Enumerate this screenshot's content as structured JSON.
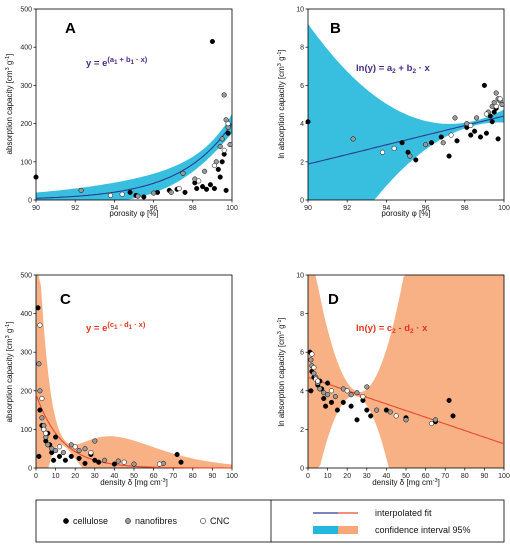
{
  "colors": {
    "exp_fit_line": "#2b3a8f",
    "exp_band": "#22b8dd",
    "dens_fit_line": "#e8492e",
    "dens_band": "#f7a878",
    "eq_top": "#4b2a8a",
    "eq_bottom": "#e8331f",
    "cellulose": "#000000",
    "nanofibres_fill": "#9a9a9a",
    "cnc_fill": "#ffffff"
  },
  "chart_data": [
    {
      "id": "A",
      "panel_label": "A",
      "type": "scatter",
      "equation": "y = e^(a1 + b1 · x)",
      "equation_parts": {
        "lhs": "y = e",
        "sup": "(a",
        "s1": "1",
        "mid": " + b",
        "s2": "1",
        "tail": " · x)"
      },
      "equation_color_key": "eq_top",
      "xlabel": "porosity φ [%]",
      "ylabel": "absorption capacity [cm3 g-1]",
      "ylabel_parts": {
        "a": "absorption capacity [cm",
        "s1": "3",
        "b": " g",
        "s2": "-1",
        "c": "]"
      },
      "xlim": [
        90,
        100
      ],
      "ylim": [
        0,
        500
      ],
      "xticks": [
        90,
        92,
        94,
        96,
        98,
        100
      ],
      "yticks": [
        0,
        100,
        200,
        300,
        400,
        500
      ],
      "fit": {
        "kind": "exp",
        "a": -32.7,
        "b": 0.38
      },
      "band": {
        "kind": "exp_band",
        "x0": 99.6,
        "widen": 0.035
      },
      "band_color_key": "exp_band",
      "line_color_key": "exp_fit_line",
      "series": [
        {
          "name": "cellulose",
          "marker": "filled",
          "points": [
            [
              90,
              60
            ],
            [
              94.8,
              20
            ],
            [
              95.1,
              12
            ],
            [
              95.5,
              8
            ],
            [
              96.2,
              20
            ],
            [
              96.8,
              25
            ],
            [
              97.2,
              28
            ],
            [
              97.6,
              20
            ],
            [
              98.1,
              45
            ],
            [
              98.2,
              30
            ],
            [
              98.5,
              35
            ],
            [
              98.7,
              28
            ],
            [
              98.9,
              40
            ],
            [
              99,
              415
            ],
            [
              99.1,
              30
            ],
            [
              99.3,
              80
            ],
            [
              99.4,
              60
            ],
            [
              99.5,
              100
            ],
            [
              99.6,
              120
            ],
            [
              99.7,
              25
            ],
            [
              99.8,
              175
            ]
          ]
        },
        {
          "name": "nanofibres",
          "marker": "grey",
          "points": [
            [
              92.3,
              25
            ],
            [
              95.2,
              10
            ],
            [
              96,
              18
            ],
            [
              96.9,
              20
            ],
            [
              97.5,
              70
            ],
            [
              98.1,
              55
            ],
            [
              98.6,
              75
            ],
            [
              99.2,
              100
            ],
            [
              99.4,
              140
            ],
            [
              99.5,
              160
            ],
            [
              99.6,
              275
            ],
            [
              99.7,
              210
            ],
            [
              99.8,
              190
            ],
            [
              99.9,
              145
            ]
          ]
        },
        {
          "name": "CNC",
          "marker": "open",
          "points": [
            [
              93.8,
              12
            ],
            [
              94.4,
              15
            ],
            [
              97.3,
              30
            ],
            [
              98.3,
              50
            ],
            [
              99.1,
              90
            ],
            [
              99.6,
              130
            ],
            [
              99.8,
              200
            ]
          ]
        }
      ]
    },
    {
      "id": "B",
      "panel_label": "B",
      "type": "scatter",
      "equation": "ln(y) = a2 + b2 · x",
      "equation_parts": {
        "lhs": "ln(y) = a",
        "s1": "2",
        "mid": " + b",
        "s2": "2",
        "tail": " · x"
      },
      "equation_color_key": "eq_top",
      "xlabel": "porosity φ [%]",
      "ylabel": "ln absorption capacity [cm3 g-1]",
      "ylabel_parts": {
        "a": "ln absorption capacity [cm",
        "s1": "3",
        "b": " g",
        "s2": "-1",
        "c": "]"
      },
      "xlim": [
        90,
        100
      ],
      "ylim": [
        0,
        10
      ],
      "xticks": [
        90,
        92,
        94,
        96,
        98,
        100
      ],
      "yticks": [
        0,
        2,
        4,
        6,
        8,
        10
      ],
      "fit": {
        "kind": "line",
        "a": -20.8,
        "b": 0.252
      },
      "band": {
        "kind": "lin_band",
        "x0": 98.5,
        "base": 0.12,
        "widen": 0.1
      },
      "band_color_key": "exp_band",
      "line_color_key": "exp_fit_line",
      "series": [
        {
          "name": "cellulose",
          "marker": "filled",
          "points": [
            [
              90,
              4.1
            ],
            [
              94.8,
              3
            ],
            [
              95.1,
              2.5
            ],
            [
              95.5,
              2.1
            ],
            [
              96.3,
              3
            ],
            [
              96.8,
              3.3
            ],
            [
              97.2,
              2.3
            ],
            [
              97.6,
              3.1
            ],
            [
              98.1,
              3.8
            ],
            [
              98.3,
              3.4
            ],
            [
              98.5,
              3.6
            ],
            [
              98.8,
              3.3
            ],
            [
              99,
              6.0
            ],
            [
              99.1,
              3.5
            ],
            [
              99.3,
              4.4
            ],
            [
              99.4,
              4.1
            ],
            [
              99.5,
              4.6
            ],
            [
              99.6,
              4.8
            ],
            [
              99.7,
              3.2
            ],
            [
              99.8,
              5.2
            ]
          ]
        },
        {
          "name": "nanofibres",
          "marker": "grey",
          "points": [
            [
              92.3,
              3.2
            ],
            [
              95.2,
              2.3
            ],
            [
              96,
              2.9
            ],
            [
              96.9,
              3.0
            ],
            [
              97.5,
              4.3
            ],
            [
              98.1,
              4.0
            ],
            [
              98.6,
              4.3
            ],
            [
              99.2,
              4.6
            ],
            [
              99.4,
              4.9
            ],
            [
              99.5,
              5.1
            ],
            [
              99.6,
              5.6
            ],
            [
              99.7,
              5.3
            ],
            [
              99.8,
              5.2
            ],
            [
              99.9,
              5.0
            ]
          ]
        },
        {
          "name": "CNC",
          "marker": "open",
          "points": [
            [
              93.8,
              2.5
            ],
            [
              94.4,
              2.7
            ],
            [
              97.3,
              3.4
            ],
            [
              98.3,
              3.9
            ],
            [
              99.1,
              4.5
            ],
            [
              99.6,
              4.9
            ],
            [
              99.8,
              5.3
            ]
          ]
        }
      ]
    },
    {
      "id": "C",
      "panel_label": "C",
      "type": "scatter",
      "equation": "y = e^(c1 - d1 · x)",
      "equation_parts": {
        "lhs": "y = e",
        "sup": "(c",
        "s1": "1",
        "mid": " - d",
        "s2": "1",
        "tail": " · x)"
      },
      "equation_color_key": "eq_bottom",
      "xlabel": "density δ [mg cm-3]",
      "xlabel_parts": {
        "a": "density δ [mg cm",
        "s1": "-3",
        "b": "]"
      },
      "ylabel": "absorption capacity [cm3 g-1]",
      "ylabel_parts": {
        "a": "absorption capacity [cm",
        "s1": "3",
        "b": " g",
        "s2": "-1",
        "c": "]"
      },
      "xlim": [
        0,
        100
      ],
      "ylim": [
        0,
        500
      ],
      "xticks": [
        0,
        10,
        20,
        30,
        40,
        50,
        60,
        70,
        80,
        90,
        100
      ],
      "yticks": [
        0,
        100,
        200,
        300,
        400,
        500
      ],
      "fit": {
        "kind": "exp",
        "a": 5.25,
        "b": -0.075
      },
      "band": {
        "kind": "exp_band",
        "x0": 15,
        "widen": 0.012
      },
      "band_color_key": "dens_band",
      "line_color_key": "dens_fit_line",
      "series": [
        {
          "name": "cellulose",
          "marker": "filled",
          "points": [
            [
              1,
              415
            ],
            [
              1.5,
              30
            ],
            [
              2,
              150
            ],
            [
              3,
              110
            ],
            [
              4,
              100
            ],
            [
              5,
              70
            ],
            [
              6,
              90
            ],
            [
              7,
              60
            ],
            [
              8,
              40
            ],
            [
              9,
              20
            ],
            [
              10,
              80
            ],
            [
              12,
              30
            ],
            [
              15,
              20
            ],
            [
              18,
              30
            ],
            [
              22,
              25
            ],
            [
              25,
              12
            ],
            [
              28,
              35
            ],
            [
              30,
              20
            ],
            [
              32,
              15
            ],
            [
              40,
              10
            ],
            [
              72,
              35
            ],
            [
              74,
              15
            ]
          ]
        },
        {
          "name": "nanofibres",
          "marker": "grey",
          "points": [
            [
              1.5,
              270
            ],
            [
              2,
              200
            ],
            [
              3,
              130
            ],
            [
              4,
              110
            ],
            [
              5,
              80
            ],
            [
              6,
              60
            ],
            [
              8,
              50
            ],
            [
              10,
              45
            ],
            [
              14,
              40
            ],
            [
              18,
              60
            ],
            [
              22,
              45
            ],
            [
              25,
              50
            ],
            [
              30,
              70
            ],
            [
              35,
              20
            ],
            [
              42,
              18
            ],
            [
              50,
              10
            ],
            [
              65,
              12
            ]
          ]
        },
        {
          "name": "CNC",
          "marker": "open",
          "points": [
            [
              2,
              370
            ],
            [
              3,
              180
            ],
            [
              4,
              100
            ],
            [
              5,
              90
            ],
            [
              12,
              55
            ],
            [
              20,
              55
            ],
            [
              28,
              40
            ],
            [
              45,
              15
            ],
            [
              63,
              10
            ]
          ]
        }
      ]
    },
    {
      "id": "D",
      "panel_label": "D",
      "type": "scatter",
      "equation": "ln(y) = c2 - d2 · x",
      "equation_parts": {
        "lhs": "ln(y) = c",
        "s1": "2",
        "mid": " - d",
        "s2": "2",
        "tail": " · x"
      },
      "equation_color_key": "eq_bottom",
      "xlabel": "density δ [mg cm-3]",
      "xlabel_parts": {
        "a": "density δ [mg cm",
        "s1": "-3",
        "b": "]"
      },
      "ylabel": "ln absorption capacity [cm3 g-1]",
      "ylabel_parts": {
        "a": "ln absorption capacity [cm",
        "s1": "3",
        "b": " g",
        "s2": "-1",
        "c": "]"
      },
      "xlim": [
        0,
        100
      ],
      "ylim": [
        0,
        10
      ],
      "xticks": [
        0,
        10,
        20,
        30,
        40,
        50,
        60,
        70,
        80,
        90,
        100
      ],
      "yticks": [
        0,
        2,
        4,
        6,
        8,
        10
      ],
      "fit": {
        "kind": "line",
        "a": 4.7,
        "b": -0.0345
      },
      "band": {
        "kind": "lin_band",
        "x0": 25,
        "base": 0.12,
        "widen": 0.012
      },
      "band_color_key": "dens_band",
      "line_color_key": "dens_fit_line",
      "series": [
        {
          "name": "cellulose",
          "marker": "filled",
          "points": [
            [
              1,
              6.0
            ],
            [
              1.5,
              4.0
            ],
            [
              2,
              5.0
            ],
            [
              3,
              4.7
            ],
            [
              4,
              4.6
            ],
            [
              5,
              4.3
            ],
            [
              6,
              4.5
            ],
            [
              7,
              4.1
            ],
            [
              8,
              3.6
            ],
            [
              9,
              3.2
            ],
            [
              10,
              4.4
            ],
            [
              12,
              3.4
            ],
            [
              15,
              3.0
            ],
            [
              18,
              3.4
            ],
            [
              22,
              3.2
            ],
            [
              25,
              2.5
            ],
            [
              28,
              3.5
            ],
            [
              30,
              3.0
            ],
            [
              32,
              2.7
            ],
            [
              40,
              3.0
            ],
            [
              50,
              2.6
            ],
            [
              65,
              2.4
            ],
            [
              72,
              3.5
            ],
            [
              74,
              2.7
            ]
          ]
        },
        {
          "name": "nanofibres",
          "marker": "grey",
          "points": [
            [
              1.5,
              5.6
            ],
            [
              2,
              5.3
            ],
            [
              3,
              4.9
            ],
            [
              4,
              4.7
            ],
            [
              5,
              4.4
            ],
            [
              6,
              4.1
            ],
            [
              8,
              3.9
            ],
            [
              10,
              3.8
            ],
            [
              14,
              3.7
            ],
            [
              18,
              4.1
            ],
            [
              22,
              3.8
            ],
            [
              25,
              3.9
            ],
            [
              30,
              4.2
            ],
            [
              35,
              3.0
            ],
            [
              42,
              2.9
            ],
            [
              50,
              2.5
            ],
            [
              65,
              2.5
            ]
          ]
        },
        {
          "name": "CNC",
          "marker": "open",
          "points": [
            [
              2,
              5.9
            ],
            [
              3,
              5.2
            ],
            [
              4,
              4.6
            ],
            [
              5,
              4.5
            ],
            [
              12,
              4.0
            ],
            [
              20,
              4.0
            ],
            [
              28,
              3.7
            ],
            [
              45,
              2.7
            ],
            [
              63,
              2.3
            ]
          ]
        }
      ]
    }
  ],
  "legend": {
    "cellulose": "cellulose",
    "nanofibres": "nanofibres",
    "cnc": "CNC",
    "fit": "interpolated fit",
    "band": "confidence interval 95%"
  }
}
